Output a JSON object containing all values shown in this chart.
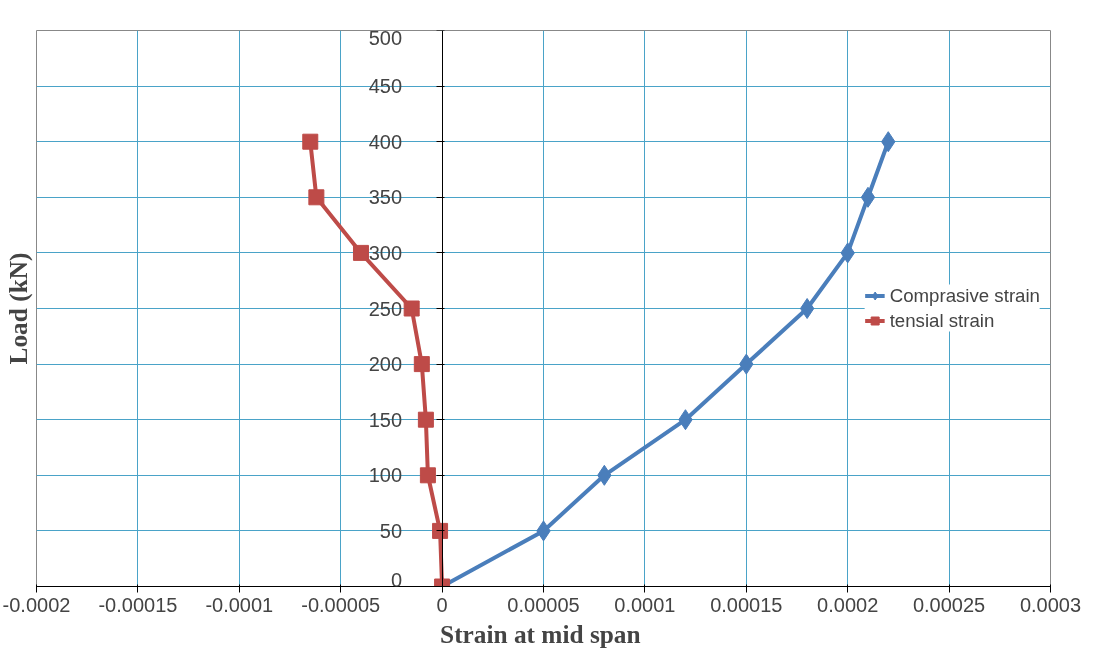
{
  "chart_data": {
    "type": "line",
    "xlabel": "Strain  at mid span",
    "ylabel": "Load (kN)",
    "series": [
      {
        "name": "Comprasive strain",
        "color": "#4a7ebb",
        "marker": "diamond",
        "x": [
          0,
          5e-05,
          8e-05,
          0.00012,
          0.00015,
          0.00018,
          0.0002,
          0.00021,
          0.00022
        ],
        "values": [
          0,
          50,
          100,
          150,
          200,
          250,
          300,
          350,
          400
        ]
      },
      {
        "name": "tensial strain",
        "color": "#be4b48",
        "marker": "square",
        "x": [
          0,
          -1e-06,
          -7e-06,
          -8e-06,
          -1e-05,
          -1.5e-05,
          -4e-05,
          -6.2e-05,
          -6.5e-05
        ],
        "values": [
          0,
          50,
          100,
          150,
          200,
          250,
          300,
          350,
          400
        ]
      }
    ],
    "xlim": [
      -0.0002,
      0.0003
    ],
    "xticks": [
      -0.0002,
      -0.00015,
      -0.0001,
      {
        "value": -5e-05,
        "label": "-0.00005"
      },
      0,
      {
        "value": 5e-05,
        "label": "0.00005"
      },
      0.0001,
      0.00015,
      0.0002,
      0.00025,
      0.0003
    ],
    "ylim": [
      0,
      500
    ],
    "yticks": [
      0,
      50,
      100,
      150,
      200,
      250,
      300,
      350,
      400,
      450,
      500
    ],
    "grid": true,
    "legend": "right",
    "line_style": "solid"
  }
}
